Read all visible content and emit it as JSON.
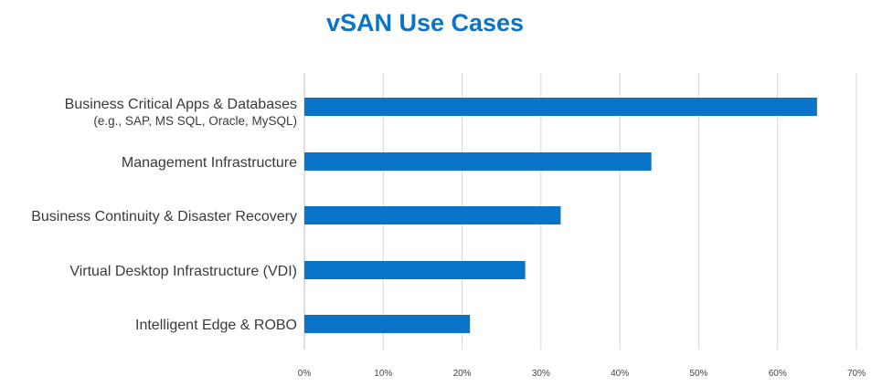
{
  "chart_data": {
    "type": "bar",
    "orientation": "horizontal",
    "title": "vSAN Use Cases",
    "categories": [
      {
        "label": "Business Critical Apps & Databases",
        "sublabel": "(e.g., SAP, MS SQL, Oracle, MySQL)"
      },
      {
        "label": "Management Infrastructure",
        "sublabel": ""
      },
      {
        "label": "Business Continuity & Disaster Recovery",
        "sublabel": ""
      },
      {
        "label": "Virtual Desktop Infrastructure (VDI)",
        "sublabel": ""
      },
      {
        "label": "Intelligent Edge & ROBO",
        "sublabel": ""
      }
    ],
    "values": [
      0.65,
      0.44,
      0.325,
      0.28,
      0.21
    ],
    "xlim": [
      0,
      0.7
    ],
    "xticks": [
      "0%",
      "10%",
      "20%",
      "30%",
      "40%",
      "50%",
      "60%",
      "70%"
    ],
    "bar_color": "#0a74c9",
    "grid": "vertical",
    "legend": "none"
  }
}
